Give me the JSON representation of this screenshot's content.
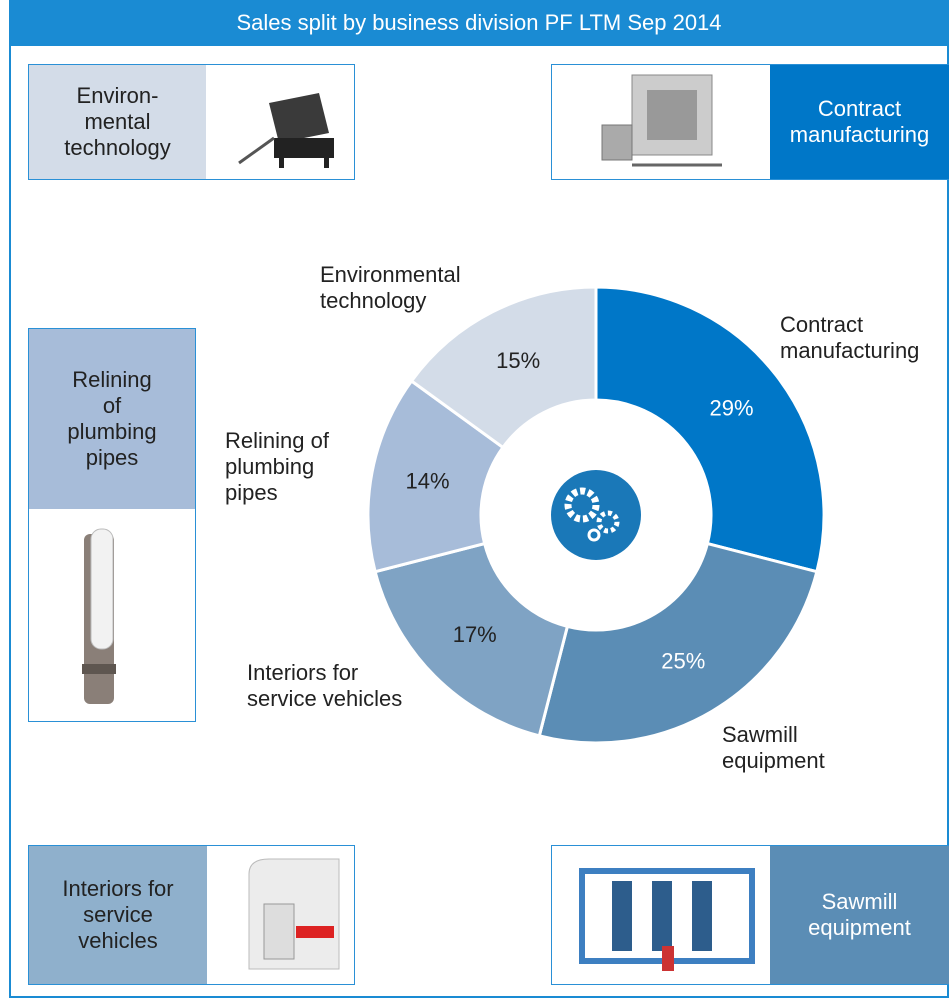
{
  "chart_data": {
    "type": "pie",
    "title": "Sales split by business division PF LTM Sep 2014",
    "categories": [
      "Contract\nmanufacturing",
      "Sawmill\nequipment",
      "Interiors for\nservice vehicles",
      "Relining of\nplumbing\npipes",
      "Environmental\ntechnology"
    ],
    "values": [
      29,
      25,
      17,
      14,
      15
    ],
    "value_labels": [
      "29%",
      "25%",
      "17%",
      "14%",
      "15%"
    ],
    "colors": [
      "#0077c8",
      "#5b8db5",
      "#7fa3c4",
      "#a7bcd9",
      "#d3dce8"
    ],
    "donut": true
  },
  "panels": [
    {
      "label": "Environ-\nmental\ntechnology"
    },
    {
      "label": "Contract\nmanufacturing"
    },
    {
      "label": "Relining\nof\nplumbing\npipes"
    },
    {
      "label": "Interiors for\nservice\nvehicles"
    },
    {
      "label": "Sawmill\nequipment"
    }
  ]
}
